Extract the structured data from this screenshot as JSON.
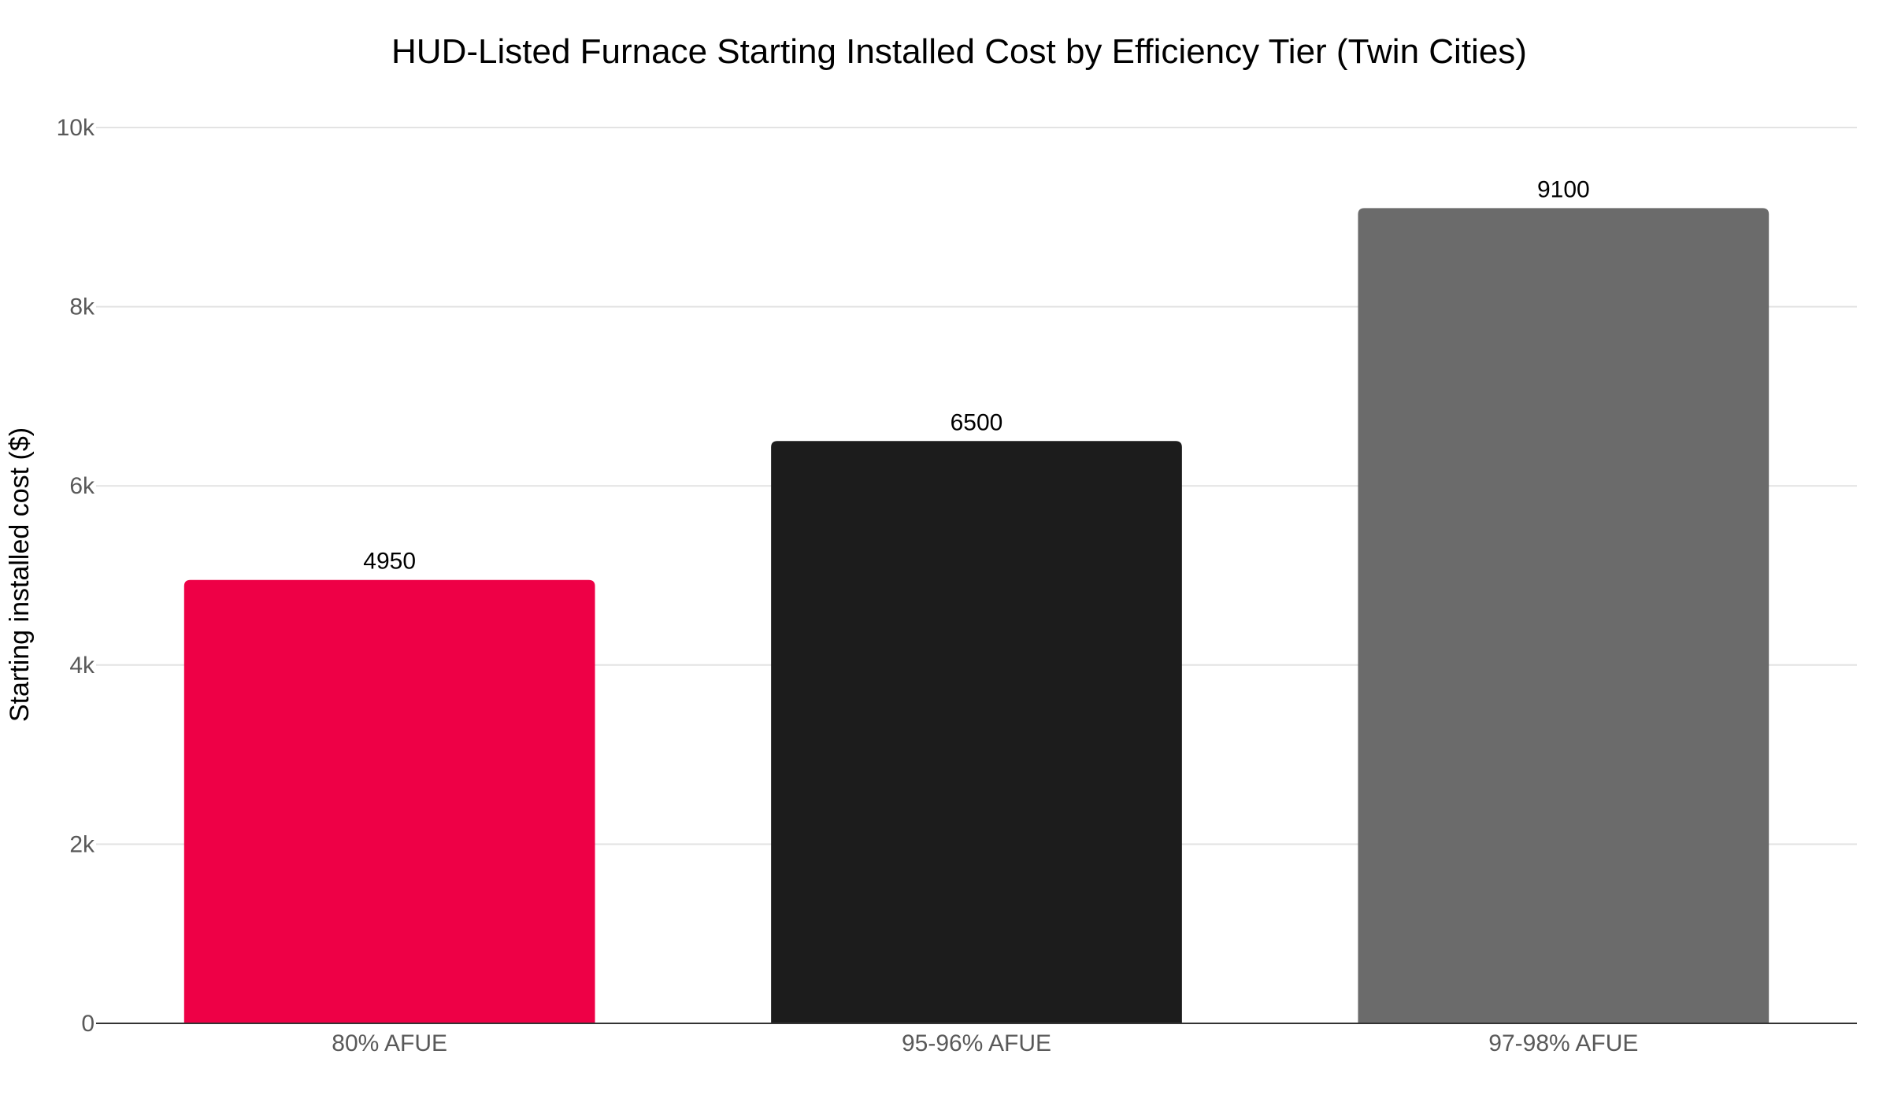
{
  "chart_data": {
    "type": "bar",
    "title": "HUD-Listed Furnace Starting Installed Cost by Efficiency Tier (Twin Cities)",
    "xlabel": "",
    "ylabel": "Starting installed cost ($)",
    "categories": [
      "80% AFUE",
      "95-96% AFUE",
      "97-98% AFUE"
    ],
    "values": [
      4950,
      6500,
      9100
    ],
    "data_labels": [
      "4950",
      "6500",
      "9100"
    ],
    "bar_colors": [
      "#ee0046",
      "#1c1c1c",
      "#6b6b6b"
    ],
    "ylim": [
      0,
      10000
    ],
    "yticks": [
      0,
      2000,
      4000,
      6000,
      8000,
      10000
    ],
    "ytick_labels": [
      "0",
      "2k",
      "4k",
      "6k",
      "8k",
      "10k"
    ],
    "grid": true,
    "legend": "none"
  }
}
